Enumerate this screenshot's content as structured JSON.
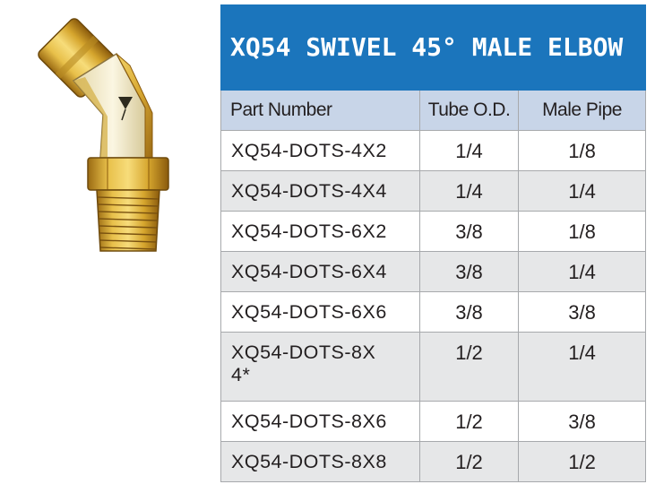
{
  "product_image": {
    "name": "XQ54 swivel 45° male elbow fitting"
  },
  "table": {
    "title": "XQ54  SWIVEL 45° MALE ELBOW",
    "columns": [
      "Part Number",
      "Tube O.D.",
      "Male Pipe"
    ],
    "rows": [
      [
        "XQ54-DOTS-4X2",
        "1/4",
        "1/8"
      ],
      [
        "XQ54-DOTS-4X4",
        "1/4",
        "1/4"
      ],
      [
        "XQ54-DOTS-6X2",
        "3/8",
        "1/8"
      ],
      [
        "XQ54-DOTS-6X4",
        "3/8",
        "1/4"
      ],
      [
        "XQ54-DOTS-6X6",
        "3/8",
        "3/8"
      ],
      [
        "XQ54-DOTS-8X4*",
        "1/2",
        "1/4"
      ],
      [
        "XQ54-DOTS-8X6",
        "1/2",
        "3/8"
      ],
      [
        "XQ54-DOTS-8X8",
        "1/2",
        "1/2"
      ]
    ]
  },
  "colors": {
    "title_bg": "#1b75bc",
    "header_bg": "#c8d5e8",
    "alt_row_bg": "#e6e7e8",
    "brass": "#c8a028"
  }
}
